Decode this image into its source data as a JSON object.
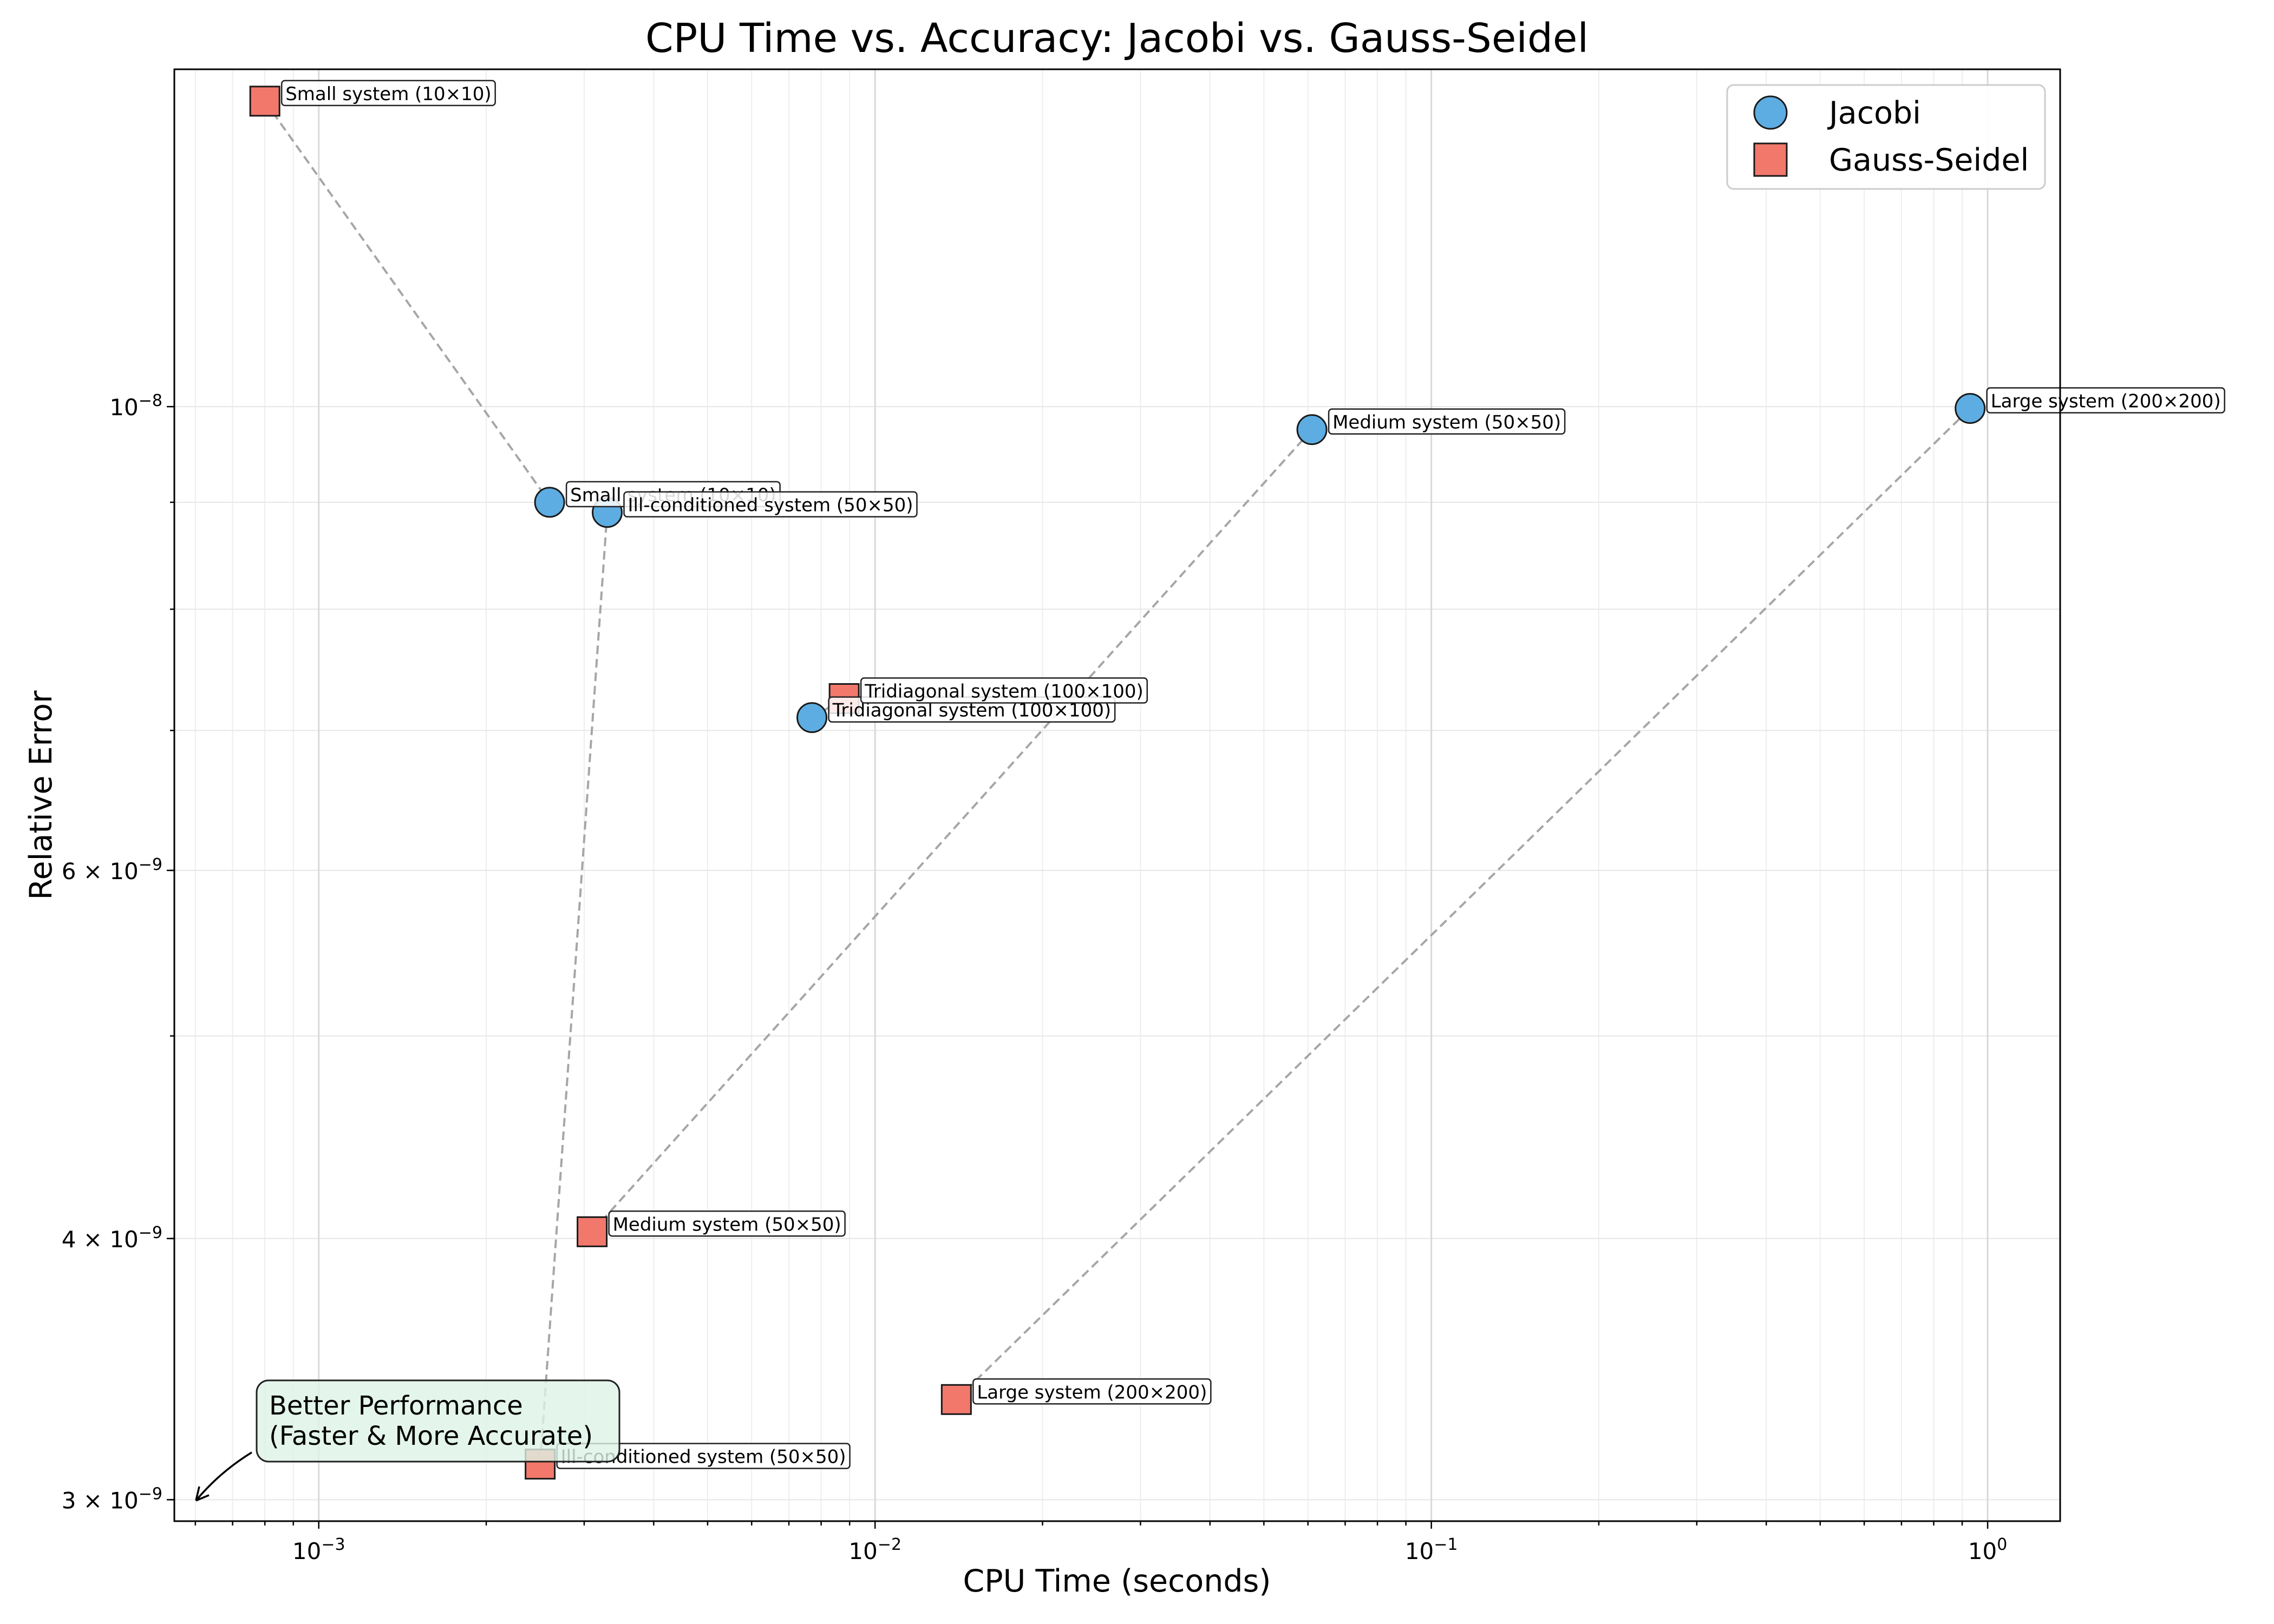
{
  "chart_data": {
    "type": "scatter",
    "title": "CPU Time vs. Accuracy: Jacobi vs. Gauss-Seidel",
    "xlabel": "CPU Time (seconds)",
    "ylabel": "Relative Error",
    "xscale": "log",
    "yscale": "log",
    "xlim": [
      0.00055,
      1.35
    ],
    "ylim": [
      2.93e-09,
      1.45e-08
    ],
    "x_ticks": [
      {
        "value": 0.001,
        "base": "10",
        "exp": "−3"
      },
      {
        "value": 0.01,
        "base": "10",
        "exp": "−2"
      },
      {
        "value": 0.1,
        "base": "10",
        "exp": "−1"
      },
      {
        "value": 1,
        "base": "10",
        "exp": "0"
      }
    ],
    "y_ticks": [
      {
        "value": 3e-09,
        "prefix": "3 × ",
        "base": "10",
        "exp": "−9"
      },
      {
        "value": 4e-09,
        "prefix": "4 × ",
        "base": "10",
        "exp": "−9"
      },
      {
        "value": 6e-09,
        "prefix": "6 × ",
        "base": "10",
        "exp": "−9"
      },
      {
        "value": 1e-08,
        "prefix": "",
        "base": "10",
        "exp": "−8"
      }
    ],
    "grid": true,
    "legend_position": "top-right",
    "series": [
      {
        "name": "Jacobi",
        "marker": "circle",
        "color": "#5DADE2",
        "points": [
          {
            "label": "Small system (10×10)",
            "x": 0.0026,
            "y": 9e-09
          },
          {
            "label": "Medium system (50×50)",
            "x": 0.061,
            "y": 9.75e-09
          },
          {
            "label": "Large system (200×200)",
            "x": 0.93,
            "y": 9.98e-09
          },
          {
            "label": "Tridiagonal system (100×100)",
            "x": 0.0077,
            "y": 7.1e-09
          },
          {
            "label": "Ill-conditioned system (50×50)",
            "x": 0.0033,
            "y": 8.9e-09
          }
        ]
      },
      {
        "name": "Gauss-Seidel",
        "marker": "square",
        "color": "#F1786B",
        "points": [
          {
            "label": "Small system (10×10)",
            "x": 0.0008,
            "y": 1.4e-08
          },
          {
            "label": "Medium system (50×50)",
            "x": 0.0031,
            "y": 4.03e-09
          },
          {
            "label": "Large system (200×200)",
            "x": 0.014,
            "y": 3.35e-09
          },
          {
            "label": "Tridiagonal system (100×100)",
            "x": 0.0088,
            "y": 7.25e-09
          },
          {
            "label": "Ill-conditioned system (50×50)",
            "x": 0.0025,
            "y": 3.12e-09
          }
        ]
      }
    ],
    "annotation": {
      "lines": [
        "Better Performance",
        "(Faster & More Accurate)"
      ],
      "box_color": "#DDF2E6"
    }
  }
}
